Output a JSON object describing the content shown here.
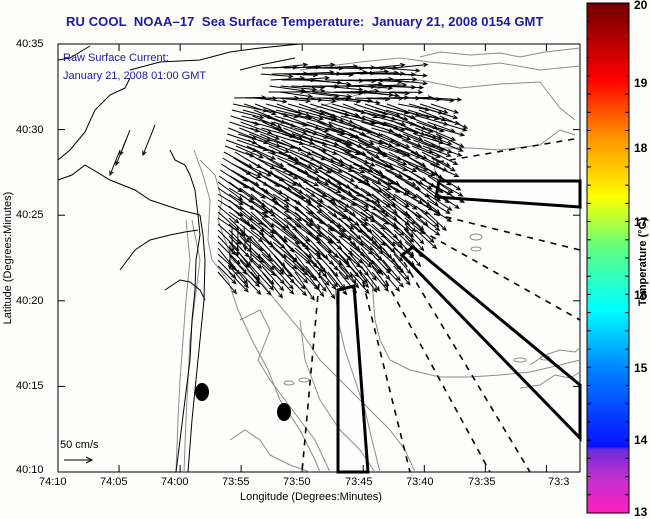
{
  "title": "RU COOL  NOAA–17  Sea Surface Temperature:  January 21, 2008 0154 GMT",
  "annotation": {
    "line1": "Raw Surface Current:",
    "line2": "January 21, 2008 01:00 GMT"
  },
  "scale_label": "50 cm/s",
  "axes": {
    "xlabel": "Longitude (Degrees:Minutes)",
    "ylabel": "Latitude (Degrees:Minutes)",
    "x_ticks": [
      "74:10",
      "74:05",
      "74:00",
      "73:55",
      "73:50",
      "73:45",
      "73:40",
      "73:35",
      "73:3"
    ],
    "y_ticks": [
      "40:35",
      "40:30",
      "40:25",
      "40:20",
      "40:15",
      "40:10"
    ]
  },
  "colorbar": {
    "title": "Temperature (°C)",
    "ticks": [
      "20",
      "19",
      "18",
      "17",
      "16",
      "15",
      "14",
      "13"
    ],
    "range": [
      13,
      20
    ],
    "colors": [
      "#ff1fbf",
      "#6a2bd8",
      "#0a10ff",
      "#0080ff",
      "#00ffff",
      "#80ff60",
      "#ffff00",
      "#ff8000",
      "#ff0000",
      "#7a0000"
    ]
  },
  "colors": {
    "title": "#1a1aa8",
    "contour": "#8c8c8c",
    "coast": "#000000"
  }
}
